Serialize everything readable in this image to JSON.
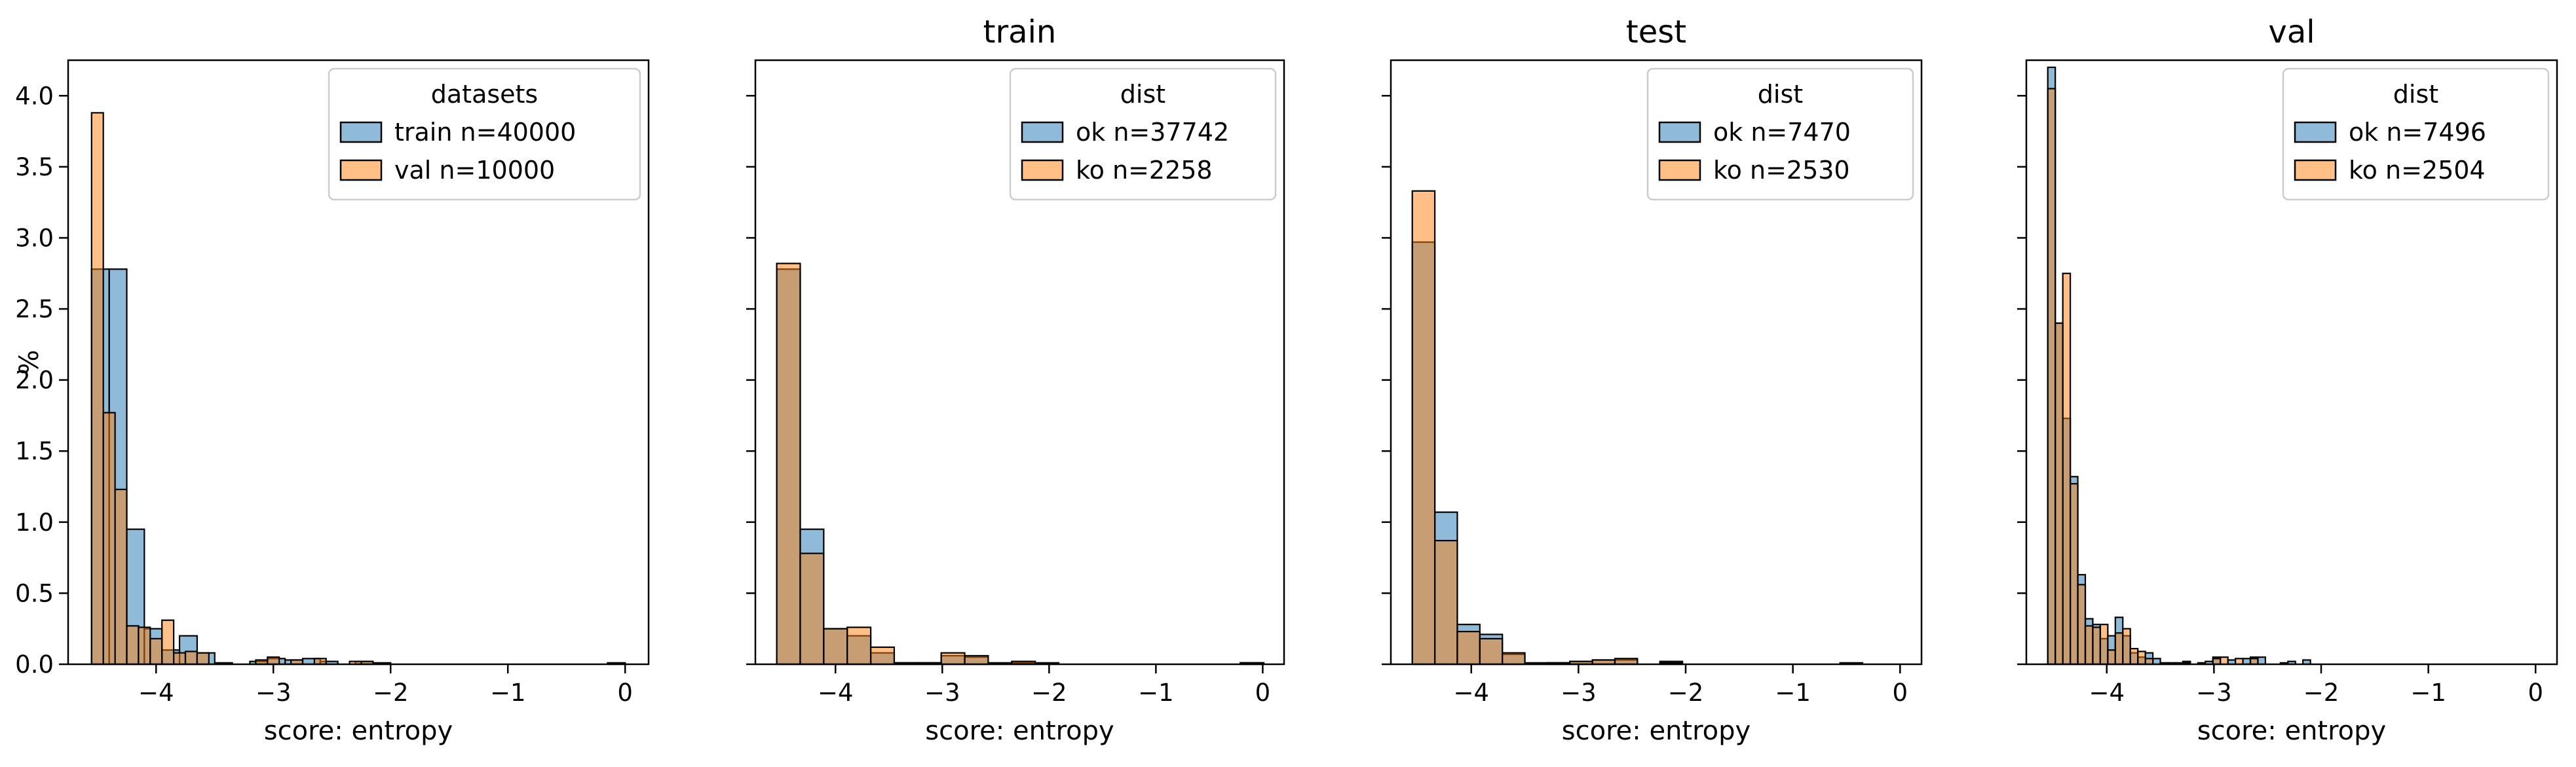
{
  "chart_data": [
    {
      "type": "histogram",
      "title": "",
      "xlabel": "score: entropy",
      "ylabel": "%",
      "xlim": [
        -4.75,
        0.2
      ],
      "ylim": [
        0,
        4.25
      ],
      "xticks": [
        -4,
        -3,
        -2,
        -1,
        0
      ],
      "xtick_labels": [
        "−4",
        "−3",
        "−2",
        "−1",
        "0"
      ],
      "yticks": [
        0,
        0.5,
        1,
        1.5,
        2,
        2.5,
        3,
        3.5,
        4
      ],
      "ytick_labels": [
        "0.0",
        "0.5",
        "1.0",
        "1.5",
        "2.0",
        "2.5",
        "3.0",
        "3.5",
        "4.0"
      ],
      "legend": {
        "title": "datasets",
        "placement": "top-right"
      },
      "series": [
        {
          "name": "train n=40000",
          "color": "#1f77b4",
          "bins": [
            [
              -4.55,
              -4.4,
              2.78
            ],
            [
              -4.4,
              -4.25,
              2.78
            ],
            [
              -4.25,
              -4.1,
              0.95
            ],
            [
              -4.1,
              -3.95,
              0.25
            ],
            [
              -3.95,
              -3.8,
              0.1
            ],
            [
              -3.8,
              -3.65,
              0.2
            ],
            [
              -3.65,
              -3.5,
              0.08
            ],
            [
              -3.5,
              -3.35,
              0.01
            ],
            [
              -3.2,
              -3.05,
              0.02
            ],
            [
              -3.05,
              -2.9,
              0.04
            ],
            [
              -2.9,
              -2.75,
              0.03
            ],
            [
              -2.75,
              -2.6,
              0.04
            ],
            [
              -2.6,
              -2.45,
              0.02
            ],
            [
              -2.3,
              -2.15,
              0.02
            ],
            [
              -2.15,
              -2.0,
              0.01
            ],
            [
              -0.15,
              0.0,
              0.01
            ]
          ]
        },
        {
          "name": "val n=10000",
          "color": "#ff7f0e",
          "bins": [
            [
              -4.55,
              -4.45,
              3.88
            ],
            [
              -4.45,
              -4.35,
              1.77
            ],
            [
              -4.35,
              -4.25,
              1.23
            ],
            [
              -4.25,
              -4.15,
              0.27
            ],
            [
              -4.15,
              -4.05,
              0.26
            ],
            [
              -4.05,
              -3.95,
              0.18
            ],
            [
              -3.95,
              -3.85,
              0.31
            ],
            [
              -3.85,
              -3.75,
              0.08
            ],
            [
              -3.75,
              -3.65,
              0.09
            ],
            [
              -3.65,
              -3.55,
              0.08
            ],
            [
              -3.15,
              -3.05,
              0.03
            ],
            [
              -3.05,
              -2.95,
              0.05
            ],
            [
              -2.85,
              -2.75,
              0.03
            ],
            [
              -2.65,
              -2.55,
              0.04
            ],
            [
              -2.35,
              -2.25,
              0.02
            ],
            [
              -2.25,
              -2.15,
              0.02
            ]
          ]
        }
      ]
    },
    {
      "type": "histogram",
      "title": "train",
      "xlabel": "score: entropy",
      "ylabel": "",
      "xlim": [
        -4.75,
        0.2
      ],
      "ylim": [
        0,
        4.25
      ],
      "xticks": [
        -4,
        -3,
        -2,
        -1,
        0
      ],
      "xtick_labels": [
        "−4",
        "−3",
        "−2",
        "−1",
        "0"
      ],
      "legend": {
        "title": "dist",
        "placement": "top-right"
      },
      "series": [
        {
          "name": "ok n=37742",
          "color": "#1f77b4",
          "bins": [
            [
              -4.55,
              -4.33,
              2.78
            ],
            [
              -4.33,
              -4.11,
              0.95
            ],
            [
              -4.11,
              -3.89,
              0.25
            ],
            [
              -3.89,
              -3.67,
              0.2
            ],
            [
              -3.67,
              -3.45,
              0.08
            ],
            [
              -3.45,
              -3.23,
              0.01
            ],
            [
              -3.23,
              -3.01,
              0.01
            ],
            [
              -3.01,
              -2.79,
              0.06
            ],
            [
              -2.79,
              -2.57,
              0.05
            ],
            [
              -2.57,
              -2.35,
              0.01
            ],
            [
              -2.35,
              -2.13,
              0.01
            ],
            [
              -0.21,
              0.01,
              0.01
            ]
          ]
        },
        {
          "name": "ko n=2258",
          "color": "#ff7f0e",
          "bins": [
            [
              -4.55,
              -4.33,
              2.82
            ],
            [
              -4.33,
              -4.11,
              0.78
            ],
            [
              -4.11,
              -3.89,
              0.25
            ],
            [
              -3.89,
              -3.67,
              0.26
            ],
            [
              -3.67,
              -3.45,
              0.12
            ],
            [
              -3.45,
              -3.23,
              0.01
            ],
            [
              -3.23,
              -3.01,
              0.01
            ],
            [
              -3.01,
              -2.79,
              0.08
            ],
            [
              -2.79,
              -2.57,
              0.06
            ],
            [
              -2.35,
              -2.13,
              0.02
            ],
            [
              -2.13,
              -1.91,
              0.01
            ],
            [
              -0.21,
              0.01,
              0.01
            ]
          ]
        }
      ]
    },
    {
      "type": "histogram",
      "title": "test",
      "xlabel": "score: entropy",
      "ylabel": "",
      "xlim": [
        -4.75,
        0.2
      ],
      "ylim": [
        0,
        4.25
      ],
      "xticks": [
        -4,
        -3,
        -2,
        -1,
        0
      ],
      "xtick_labels": [
        "−4",
        "−3",
        "−2",
        "−1",
        "0"
      ],
      "legend": {
        "title": "dist",
        "placement": "top-right"
      },
      "series": [
        {
          "name": "ok n=7470",
          "color": "#1f77b4",
          "bins": [
            [
              -4.55,
              -4.34,
              2.97
            ],
            [
              -4.34,
              -4.13,
              1.07
            ],
            [
              -4.13,
              -3.92,
              0.28
            ],
            [
              -3.92,
              -3.71,
              0.21
            ],
            [
              -3.71,
              -3.5,
              0.07
            ],
            [
              -3.5,
              -3.29,
              0.01
            ],
            [
              -3.29,
              -3.08,
              0.01
            ],
            [
              -3.08,
              -2.87,
              0.02
            ],
            [
              -2.87,
              -2.66,
              0.03
            ],
            [
              -2.66,
              -2.45,
              0.03
            ],
            [
              -2.24,
              -2.03,
              0.02
            ],
            [
              -0.56,
              -0.35,
              0.01
            ]
          ]
        },
        {
          "name": "ko n=2530",
          "color": "#ff7f0e",
          "bins": [
            [
              -4.55,
              -4.34,
              3.33
            ],
            [
              -4.34,
              -4.13,
              0.87
            ],
            [
              -4.13,
              -3.92,
              0.23
            ],
            [
              -3.92,
              -3.71,
              0.18
            ],
            [
              -3.71,
              -3.5,
              0.08
            ],
            [
              -3.29,
              -3.08,
              0.01
            ],
            [
              -3.08,
              -2.87,
              0.02
            ],
            [
              -2.87,
              -2.66,
              0.03
            ],
            [
              -2.66,
              -2.45,
              0.04
            ],
            [
              -2.24,
              -2.03,
              0.01
            ]
          ]
        }
      ]
    },
    {
      "type": "histogram",
      "title": "val",
      "xlabel": "score: entropy",
      "ylabel": "",
      "xlim": [
        -4.75,
        0.2
      ],
      "ylim": [
        0,
        4.25
      ],
      "xticks": [
        -4,
        -3,
        -2,
        -1,
        0
      ],
      "xtick_labels": [
        "−4",
        "−3",
        "−2",
        "−1",
        "0"
      ],
      "legend": {
        "title": "dist",
        "placement": "top-right"
      },
      "series": [
        {
          "name": "ok n=7496",
          "color": "#1f77b4",
          "bins": [
            [
              -4.55,
              -4.48,
              4.2
            ],
            [
              -4.48,
              -4.41,
              2.4
            ],
            [
              -4.41,
              -4.34,
              1.73
            ],
            [
              -4.34,
              -4.27,
              1.32
            ],
            [
              -4.27,
              -4.2,
              0.63
            ],
            [
              -4.2,
              -4.13,
              0.32
            ],
            [
              -4.13,
              -4.06,
              0.28
            ],
            [
              -4.06,
              -3.99,
              0.18
            ],
            [
              -3.99,
              -3.92,
              0.2
            ],
            [
              -3.92,
              -3.85,
              0.33
            ],
            [
              -3.85,
              -3.78,
              0.2
            ],
            [
              -3.78,
              -3.71,
              0.08
            ],
            [
              -3.71,
              -3.64,
              0.05
            ],
            [
              -3.64,
              -3.57,
              0.08
            ],
            [
              -3.57,
              -3.5,
              0.04
            ],
            [
              -3.43,
              -3.36,
              0.01
            ],
            [
              -3.36,
              -3.29,
              0.01
            ],
            [
              -3.29,
              -3.22,
              0.02
            ],
            [
              -3.08,
              -3.01,
              0.02
            ],
            [
              -3.01,
              -2.94,
              0.05
            ],
            [
              -2.87,
              -2.8,
              0.03
            ],
            [
              -2.73,
              -2.66,
              0.04
            ],
            [
              -2.66,
              -2.59,
              0.05
            ],
            [
              -2.59,
              -2.52,
              0.05
            ],
            [
              -2.31,
              -2.24,
              0.02
            ],
            [
              -2.17,
              -2.1,
              0.03
            ]
          ]
        },
        {
          "name": "ko n=2504",
          "color": "#ff7f0e",
          "bins": [
            [
              -4.55,
              -4.48,
              4.05
            ],
            [
              -4.48,
              -4.41,
              2.4
            ],
            [
              -4.41,
              -4.34,
              2.75
            ],
            [
              -4.34,
              -4.27,
              1.27
            ],
            [
              -4.27,
              -4.2,
              0.56
            ],
            [
              -4.2,
              -4.13,
              0.27
            ],
            [
              -4.13,
              -4.06,
              0.26
            ],
            [
              -4.06,
              -3.99,
              0.28
            ],
            [
              -3.99,
              -3.92,
              0.1
            ],
            [
              -3.92,
              -3.85,
              0.22
            ],
            [
              -3.85,
              -3.78,
              0.25
            ],
            [
              -3.78,
              -3.71,
              0.11
            ],
            [
              -3.71,
              -3.64,
              0.09
            ],
            [
              -3.64,
              -3.57,
              0.04
            ],
            [
              -3.5,
              -3.43,
              0.01
            ],
            [
              -3.29,
              -3.22,
              0.01
            ],
            [
              -3.15,
              -3.08,
              0.01
            ],
            [
              -3.01,
              -2.94,
              0.04
            ],
            [
              -2.94,
              -2.87,
              0.05
            ],
            [
              -2.8,
              -2.73,
              0.04
            ],
            [
              -2.66,
              -2.59,
              0.04
            ],
            [
              -2.38,
              -2.31,
              0.01
            ]
          ]
        }
      ]
    }
  ]
}
